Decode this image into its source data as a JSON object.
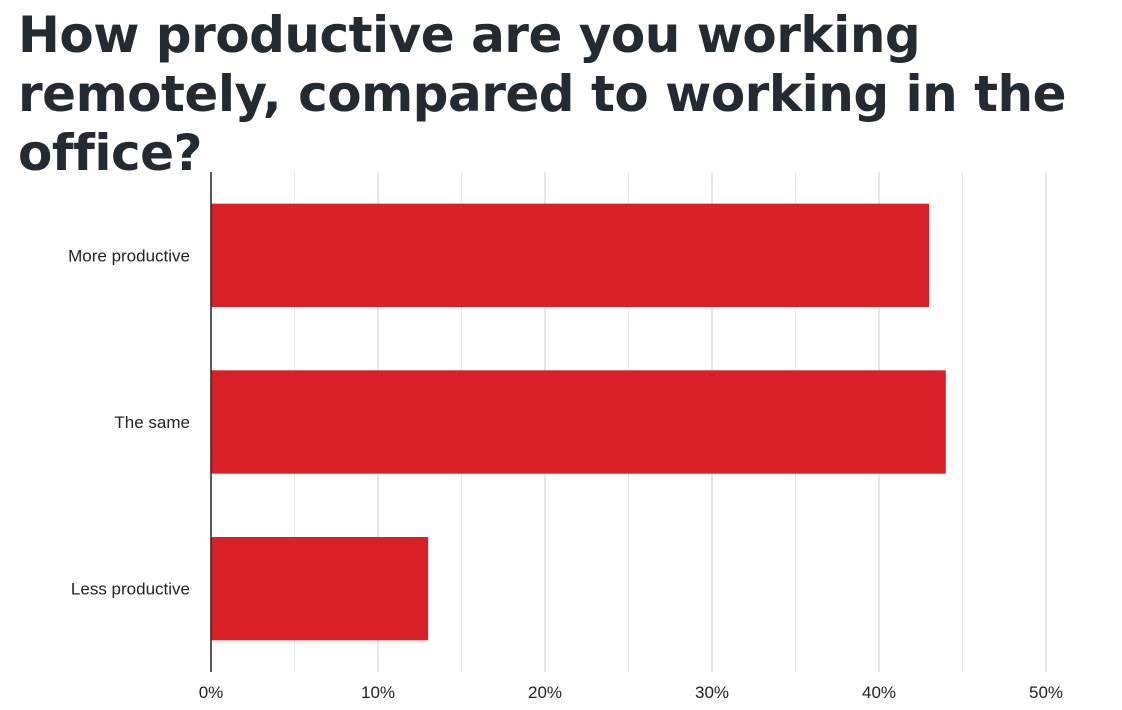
{
  "chart_data": {
    "type": "bar",
    "orientation": "horizontal",
    "title": "How productive are you working remotely, compared to working in the office?",
    "categories": [
      "More productive",
      "The same",
      "Less productive"
    ],
    "values": [
      43,
      44,
      13
    ],
    "unit": "%",
    "xlim": [
      0,
      50
    ],
    "xticks": [
      0,
      10,
      20,
      30,
      40,
      50
    ],
    "xtick_labels": [
      "0%",
      "10%",
      "20%",
      "30%",
      "40%",
      "50%"
    ],
    "grid": true,
    "bar_color": "#d92027",
    "xlabel": "",
    "ylabel": ""
  }
}
